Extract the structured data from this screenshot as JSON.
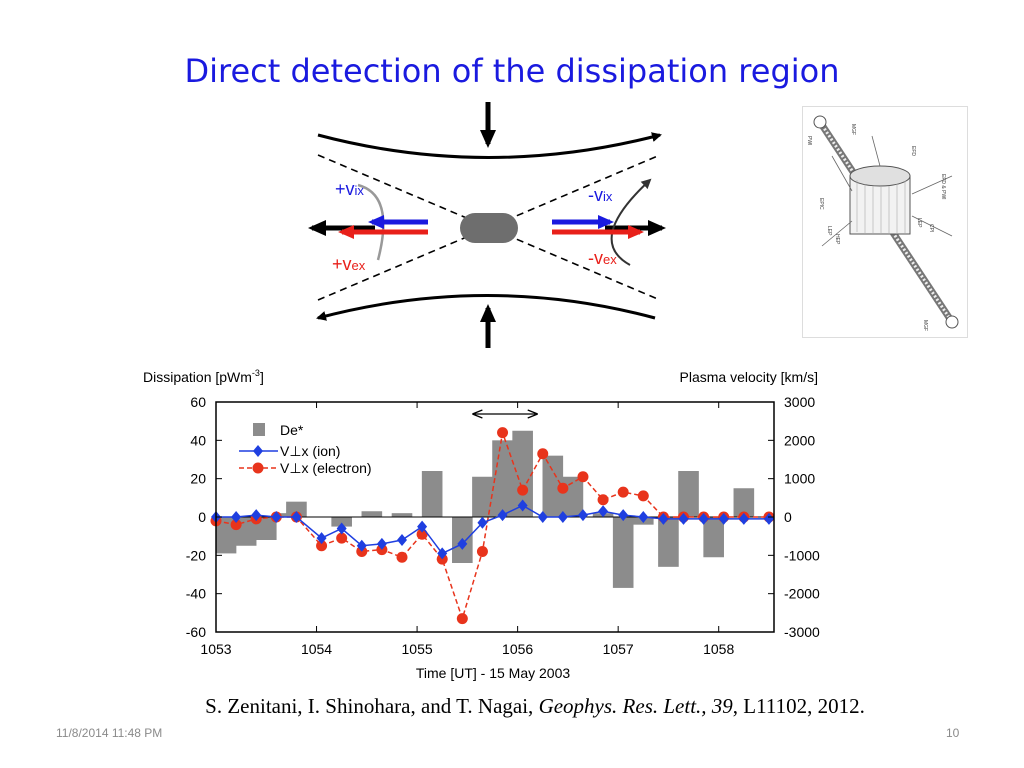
{
  "slide": {
    "title": "Direct detection of the dissipation region",
    "citation": {
      "authors": "S. Zenitani, I. Shinohara, and T. Nagai, ",
      "journal": "Geophys. Res. Lett., 39",
      "ref": ", L11102, 2012."
    },
    "footer_date": "11/8/2014 11:48 PM",
    "page_number": "10"
  },
  "schematic": {
    "labels": {
      "vix_plus": "+v",
      "vex_plus": "+v",
      "vix_minus": "-v",
      "vex_minus": "-v",
      "ix": "ix",
      "ex": "ex"
    },
    "colors": {
      "ion": "#1a1adf",
      "electron": "#e8201a",
      "label_blue": "#1a1adf",
      "label_red": "#e8201a"
    }
  },
  "satellite": {
    "labels": [
      "MGF",
      "PWI",
      "EFD",
      "EFD & PWI",
      "EPIC",
      "LEP",
      "HEP",
      "LEP",
      "CPI",
      "MGF"
    ]
  },
  "chart_data": {
    "type": "bar+line",
    "xlabel": "Time [UT] - 15 May 2003",
    "ylabel_left": "Dissipation [pWm",
    "ylabel_left_sup": "-3",
    "ylabel_left_end": "]",
    "ylabel_right": "Plasma velocity [km/s]",
    "xlim": [
      1053.0,
      1058.55
    ],
    "ylim_left": [
      -60,
      60
    ],
    "ylim_right": [
      -3000,
      3000
    ],
    "x_ticks": [
      1053,
      1054,
      1055,
      1056,
      1057,
      1058
    ],
    "x_tick_labels": [
      "1053",
      "1054",
      "1055",
      "1056",
      "1057",
      "1058"
    ],
    "y_left_ticks": [
      60,
      40,
      20,
      0,
      -20,
      -40,
      -60
    ],
    "y_left_tick_labels": [
      "60",
      "40",
      "20",
      "0",
      "-20",
      "-40",
      "-60"
    ],
    "y_right_ticks": [
      3000,
      2000,
      1000,
      0,
      -1000,
      -2000,
      -3000
    ],
    "y_right_tick_labels": [
      "3000",
      "2000",
      "1000",
      "0",
      "-1000",
      "-2000",
      "-3000"
    ],
    "legend": {
      "placement": "top-left",
      "bar": "De*",
      "ion": "V⊥x (ion)",
      "electron": "V⊥x (electron)"
    },
    "colors": {
      "bar": "#8c8c8c",
      "ion": "#1f3fe0",
      "electron": "#e8341c"
    },
    "bar_width_min": 0.205,
    "bars": {
      "x": [
        1053.1,
        1053.3,
        1053.5,
        1053.7,
        1053.8,
        1054.05,
        1054.25,
        1054.55,
        1054.85,
        1055.15,
        1055.45,
        1055.65,
        1055.85,
        1056.05,
        1056.35,
        1056.55,
        1056.85,
        1057.05,
        1057.25,
        1057.5,
        1057.7,
        1057.95,
        1058.25
      ],
      "values": [
        -19,
        -15,
        -12,
        2,
        8,
        0,
        -5,
        3,
        2,
        24,
        -24,
        21,
        40,
        45,
        32,
        21,
        2,
        -37,
        -4,
        -26,
        24,
        -21,
        15
      ]
    },
    "ion": {
      "x": [
        1053.0,
        1053.2,
        1053.4,
        1053.6,
        1053.8,
        1054.05,
        1054.25,
        1054.45,
        1054.65,
        1054.85,
        1055.05,
        1055.25,
        1055.45,
        1055.65,
        1055.85,
        1056.05,
        1056.25,
        1056.45,
        1056.65,
        1056.85,
        1057.05,
        1057.25,
        1057.45,
        1057.65,
        1057.85,
        1058.05,
        1058.25,
        1058.5
      ],
      "values": [
        0,
        0,
        50,
        0,
        0,
        -550,
        -300,
        -750,
        -700,
        -600,
        -250,
        -950,
        -700,
        -150,
        50,
        300,
        0,
        0,
        50,
        150,
        50,
        0,
        -50,
        -50,
        -50,
        -50,
        -50,
        -50
      ]
    },
    "electron": {
      "x": [
        1053.0,
        1053.2,
        1053.4,
        1053.6,
        1053.8,
        1054.05,
        1054.25,
        1054.45,
        1054.65,
        1054.85,
        1055.05,
        1055.25,
        1055.45,
        1055.65,
        1055.85,
        1056.05,
        1056.25,
        1056.45,
        1056.65,
        1056.85,
        1057.05,
        1057.25,
        1057.45,
        1057.65,
        1057.85,
        1058.05,
        1058.25,
        1058.5
      ],
      "values": [
        -100,
        -200,
        -50,
        0,
        0,
        -750,
        -550,
        -900,
        -850,
        -1050,
        -450,
        -1100,
        -2650,
        -900,
        2200,
        700,
        1650,
        750,
        1050,
        450,
        650,
        550,
        0,
        0,
        0,
        0,
        0,
        0
      ]
    },
    "annotation": {
      "type": "double-arrow",
      "x_start": 1055.55,
      "x_end": 1056.2
    }
  }
}
